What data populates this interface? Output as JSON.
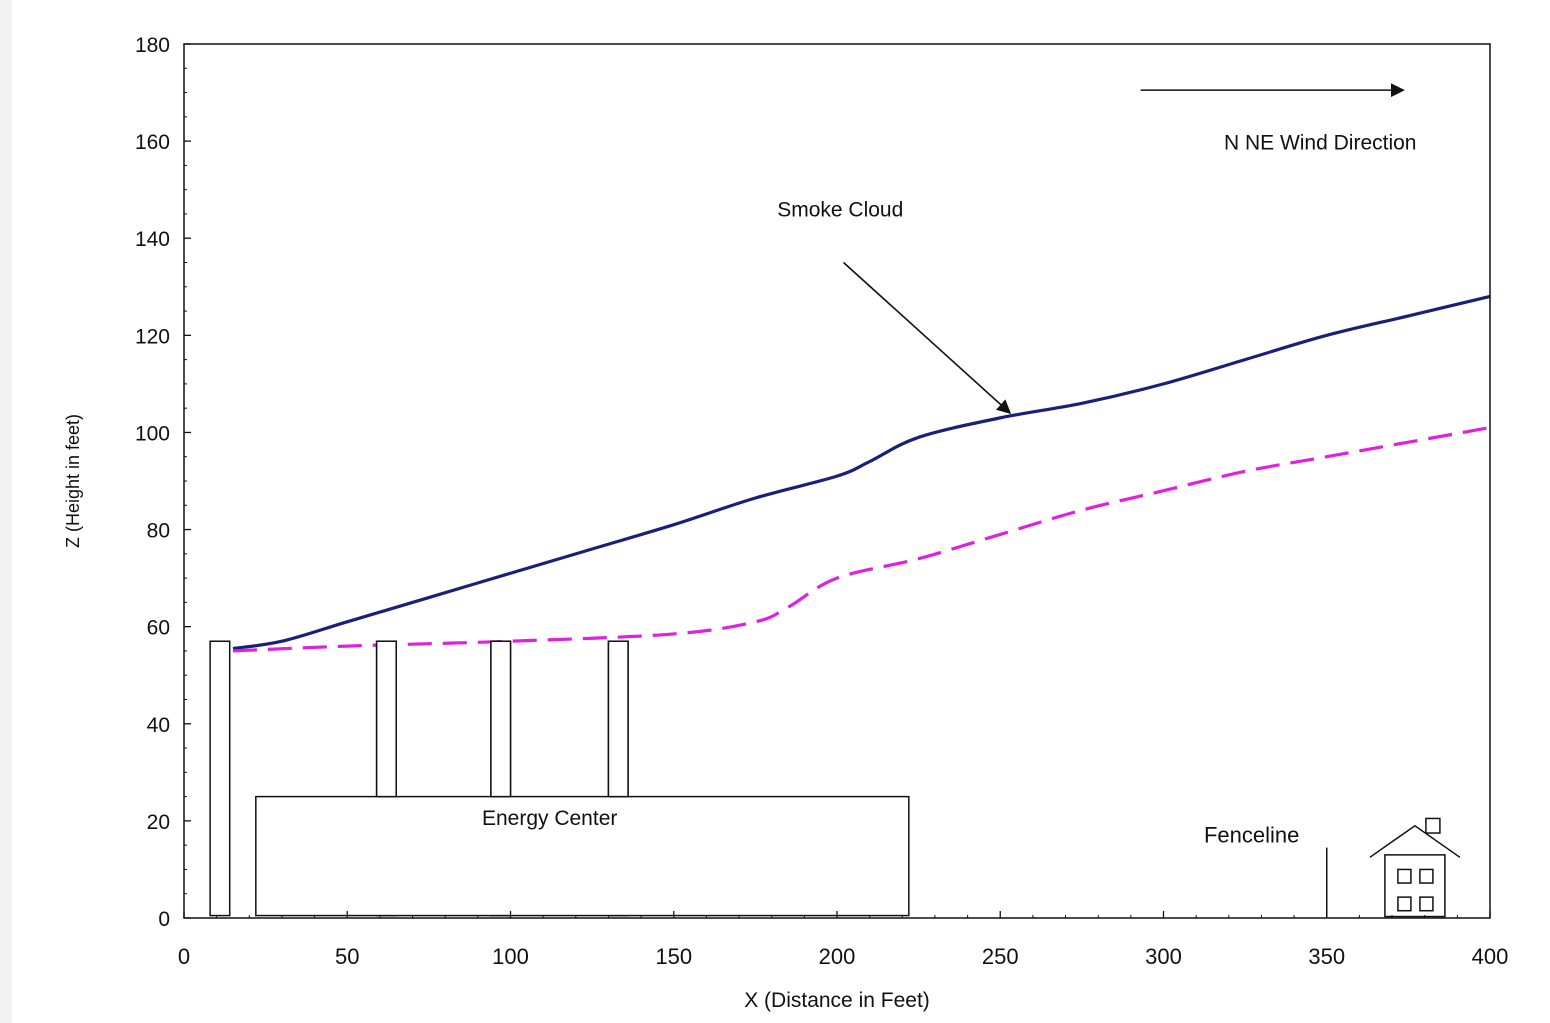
{
  "chart_data": {
    "type": "line",
    "xlabel": "X (Distance in Feet)",
    "ylabel": "Z (Height in feet)",
    "xlim": [
      0,
      400
    ],
    "ylim": [
      0,
      180
    ],
    "x_ticks": [
      "0",
      "50",
      "100",
      "150",
      "200",
      "250",
      "300",
      "350",
      "400"
    ],
    "y_ticks": [
      "0",
      "20",
      "40",
      "60",
      "80",
      "100",
      "120",
      "140",
      "160",
      "180"
    ],
    "grid": false,
    "series": [
      {
        "color": "#1a1f7a",
        "style": "solid",
        "points": [
          [
            15,
            55.5
          ],
          [
            30,
            57
          ],
          [
            50,
            61
          ],
          [
            75,
            66
          ],
          [
            100,
            71
          ],
          [
            125,
            76
          ],
          [
            150,
            81
          ],
          [
            175,
            86.5
          ],
          [
            200,
            91
          ],
          [
            210,
            94
          ],
          [
            225,
            99
          ],
          [
            250,
            103
          ],
          [
            275,
            106
          ],
          [
            300,
            110
          ],
          [
            325,
            115
          ],
          [
            350,
            120
          ],
          [
            375,
            124
          ],
          [
            400,
            128
          ]
        ]
      },
      {
        "color": "#e020e0",
        "style": "dashed",
        "points": [
          [
            15,
            55
          ],
          [
            50,
            56
          ],
          [
            100,
            57
          ],
          [
            150,
            58.5
          ],
          [
            175,
            61
          ],
          [
            185,
            64
          ],
          [
            200,
            70
          ],
          [
            225,
            74
          ],
          [
            250,
            79
          ],
          [
            275,
            84
          ],
          [
            300,
            88
          ],
          [
            325,
            92
          ],
          [
            350,
            95
          ],
          [
            375,
            98
          ],
          [
            400,
            101
          ]
        ]
      }
    ],
    "annotations": {
      "smoke_cloud": "Smoke Cloud",
      "wind_direction": "N NE Wind Direction",
      "energy_center": "Energy Center",
      "fenceline": "Fenceline"
    },
    "stacks": [
      {
        "x0": 8,
        "x1": 14,
        "height": 57
      },
      {
        "x0": 59,
        "x1": 65,
        "height": 57
      },
      {
        "x0": 94,
        "x1": 100,
        "height": 57
      },
      {
        "x0": 130,
        "x1": 136,
        "height": 57
      }
    ],
    "building": {
      "x0": 22,
      "x1": 222,
      "height": 25
    },
    "fenceline_x": 350,
    "house_x": 377
  }
}
